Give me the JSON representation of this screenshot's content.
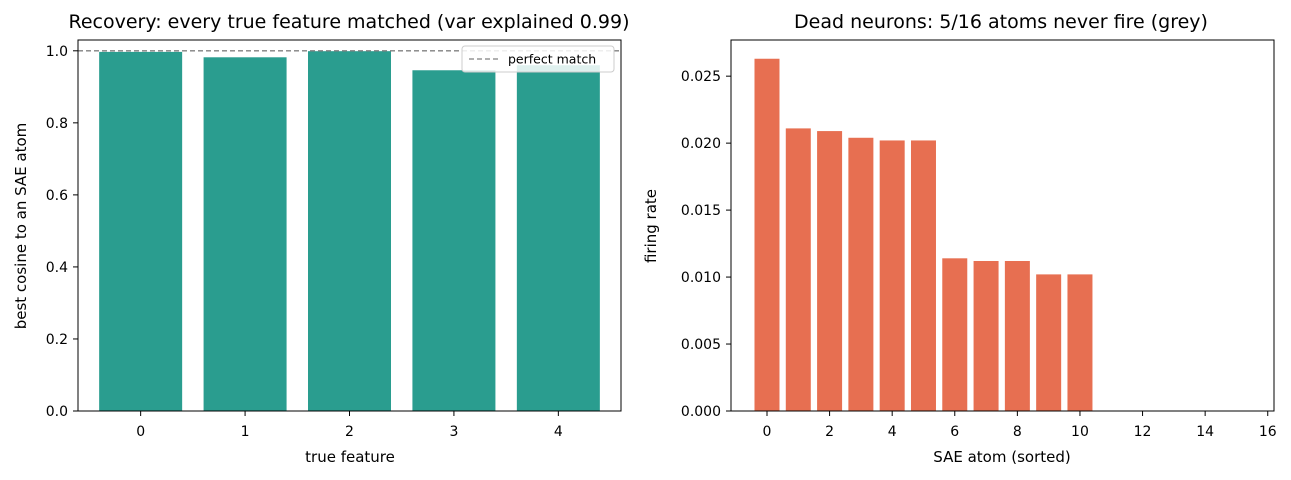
{
  "chart_data": [
    {
      "type": "bar",
      "title": "Recovery: every true feature matched (var explained 0.99)",
      "xlabel": "true feature",
      "ylabel": "best cosine to an SAE atom",
      "categories": [
        "0",
        "1",
        "2",
        "3",
        "4"
      ],
      "values": [
        0.997,
        0.982,
        0.999,
        0.946,
        0.96
      ],
      "bar_color": "#2a9d8f",
      "xlim": [
        -0.6,
        4.6
      ],
      "ylim": [
        0,
        1.03
      ],
      "x_ticks": [
        "0",
        "1",
        "2",
        "3",
        "4"
      ],
      "y_ticks": [
        "0.0",
        "0.2",
        "0.4",
        "0.6",
        "0.8",
        "1.0"
      ],
      "reference_line": {
        "y": 1.0,
        "label": "perfect match",
        "color": "#808080",
        "style": "dashed"
      },
      "legend": {
        "position": "top-right",
        "entries": [
          "perfect match"
        ]
      },
      "grid": false
    },
    {
      "type": "bar",
      "title": "Dead neurons: 5/16 atoms never fire (grey)",
      "xlabel": "SAE atom (sorted)",
      "ylabel": "firing rate",
      "x": [
        0,
        1,
        2,
        3,
        4,
        5,
        6,
        7,
        8,
        9,
        10,
        11,
        12,
        13,
        14,
        15
      ],
      "values": [
        0.0263,
        0.0211,
        0.0209,
        0.0204,
        0.0202,
        0.0202,
        0.0114,
        0.0112,
        0.0112,
        0.0102,
        0.0102,
        0,
        0,
        0,
        0,
        0
      ],
      "bar_color": "#e76f51",
      "dead_color": "#808080",
      "xlim": [
        -1.15,
        16.2
      ],
      "ylim": [
        0,
        0.0277
      ],
      "x_ticks": [
        "0",
        "2",
        "4",
        "6",
        "8",
        "10",
        "12",
        "14",
        "16"
      ],
      "y_ticks": [
        "0.000",
        "0.005",
        "0.010",
        "0.015",
        "0.020",
        "0.025"
      ],
      "grid": false
    }
  ]
}
